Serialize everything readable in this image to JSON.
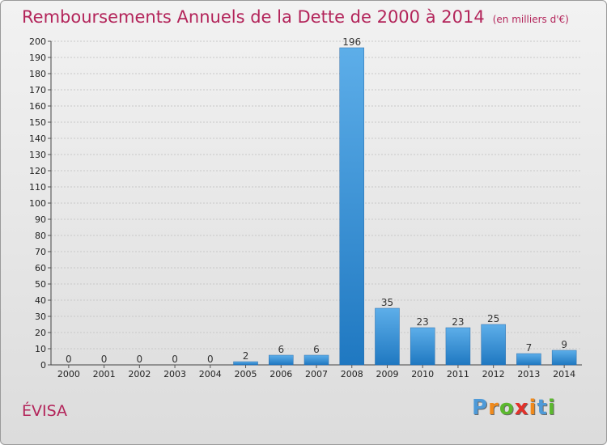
{
  "header": {
    "title": "Remboursements Annuels de la Dette de 2000 à 2014",
    "unit": "(en milliers d'€)"
  },
  "commune": "ÉVISA",
  "logo": {
    "letters": [
      {
        "ch": "P",
        "color": "#4e9ad8"
      },
      {
        "ch": "r",
        "color": "#f08a1c"
      },
      {
        "ch": "o",
        "color": "#5bb82e"
      },
      {
        "ch": "x",
        "color": "#e2312a"
      },
      {
        "ch": "i",
        "color": "#f08a1c"
      },
      {
        "ch": "t",
        "color": "#4e9ad8"
      },
      {
        "ch": "i",
        "color": "#5bb82e"
      }
    ]
  },
  "colors": {
    "title": "#b3245a",
    "bar_top": "#5daee9",
    "bar_bottom": "#1f78c1",
    "grid": "#c8c8c8"
  },
  "chart_data": {
    "type": "bar",
    "title": "Remboursements Annuels de la Dette de 2000 à 2014",
    "subtitle": "(en milliers d'€)",
    "categories": [
      "2000",
      "2001",
      "2002",
      "2003",
      "2004",
      "2005",
      "2006",
      "2007",
      "2008",
      "2009",
      "2010",
      "2011",
      "2012",
      "2013",
      "2014"
    ],
    "values": [
      0,
      0,
      0,
      0,
      0,
      2,
      6,
      6,
      196,
      35,
      23,
      23,
      25,
      7,
      9
    ],
    "ylim": [
      0,
      200
    ],
    "yticks": [
      0,
      10,
      20,
      30,
      40,
      50,
      60,
      70,
      80,
      90,
      100,
      110,
      120,
      130,
      140,
      150,
      160,
      170,
      180,
      190,
      200
    ],
    "grid": true,
    "legend": "none"
  }
}
